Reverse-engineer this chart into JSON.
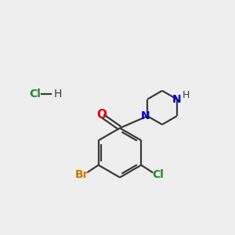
{
  "background_color": "#eeeeee",
  "bond_color": "#3a3a3a",
  "oxygen_color": "#dd0000",
  "nitrogen_color": "#0000cc",
  "bromine_color": "#cc7700",
  "chlorine_color": "#228B22",
  "hcl_cl_color": "#228B22",
  "line_width": 1.6,
  "figsize": [
    3.0,
    3.0
  ],
  "dpi": 100,
  "xlim": [
    0,
    10
  ],
  "ylim": [
    0,
    10
  ]
}
